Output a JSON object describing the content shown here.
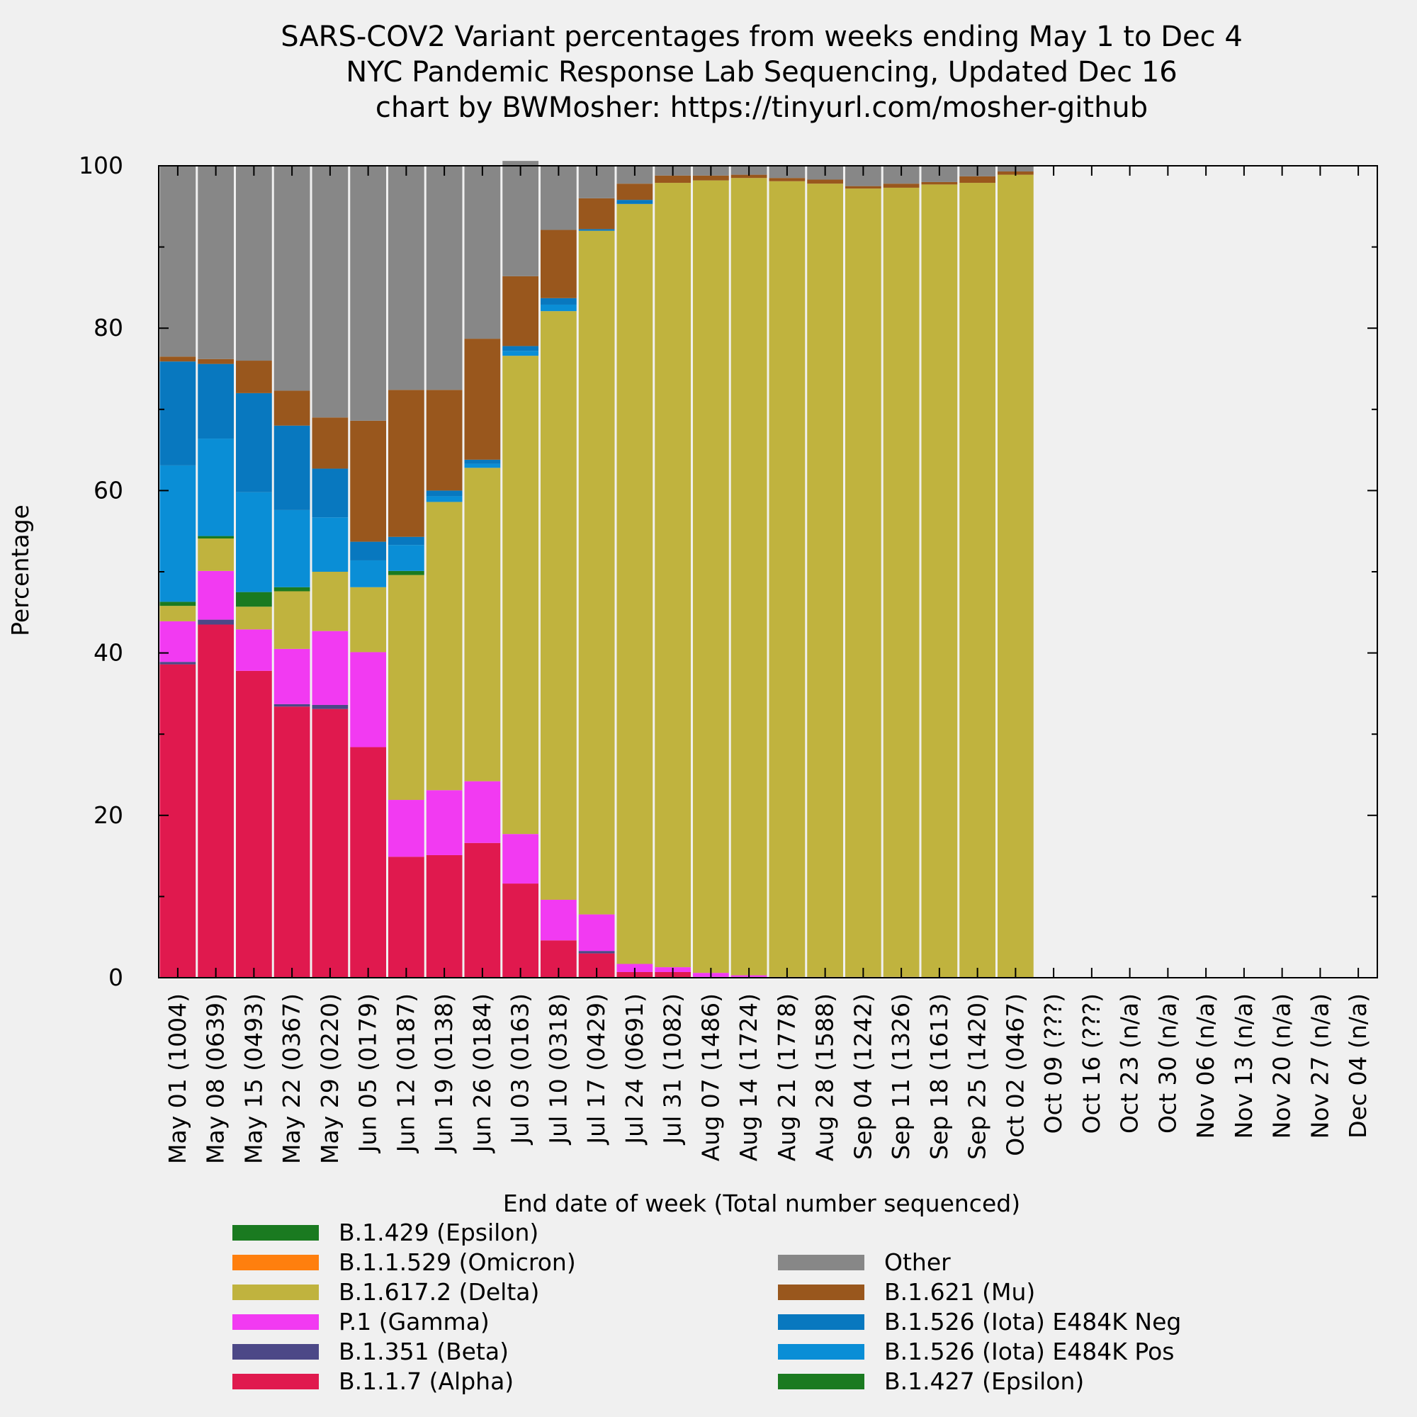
{
  "titles": [
    "SARS-COV2 Variant percentages from weeks ending May 1 to Dec 4",
    "NYC Pandemic Response Lab Sequencing, Updated Dec 16",
    "chart by BWMosher: https://tinyurl.com/mosher-github"
  ],
  "chart_data": {
    "type": "bar",
    "stacked": true,
    "title": "SARS-COV2 Variant percentages from weeks ending May 1 to Dec 4",
    "xlabel": "End date of week (Total number sequenced)",
    "ylabel": "Percentage",
    "ylim": [
      0,
      100
    ],
    "yticks": [
      0,
      20,
      40,
      60,
      80,
      100
    ],
    "grid": false,
    "categories": [
      "May 01 (1004)",
      "May 08 (0639)",
      "May 15 (0493)",
      "May 22 (0367)",
      "May 29 (0220)",
      "Jun 05 (0179)",
      "Jun 12 (0187)",
      "Jun 19 (0138)",
      "Jun 26 (0184)",
      "Jul 03 (0163)",
      "Jul 10 (0318)",
      "Jul 17 (0429)",
      "Jul 24 (0691)",
      "Jul 31 (1082)",
      "Aug 07 (1486)",
      "Aug 14 (1724)",
      "Aug 21 (1778)",
      "Aug 28 (1588)",
      "Sep 04 (1242)",
      "Sep 11 (1326)",
      "Sep 18 (1613)",
      "Sep 25 (1420)",
      "Oct 02 (0467)",
      "Oct 09 (???)",
      "Oct 16 (???)",
      "Oct 23 (n/a)",
      "Oct 30 (n/a)",
      "Nov 06 (n/a)",
      "Nov 13 (n/a)",
      "Nov 20 (n/a)",
      "Nov 27 (n/a)",
      "Dec 04 (n/a)"
    ],
    "series": [
      {
        "name": "B.1.1.7 (Alpha)",
        "color": "#e0194e",
        "values": [
          38.6,
          43.5,
          37.8,
          33.4,
          33.1,
          28.4,
          14.9,
          15.1,
          16.6,
          11.6,
          4.6,
          3.0,
          0.7,
          0.7,
          0.1,
          0.1,
          0,
          0,
          0,
          0,
          0,
          0,
          0,
          0,
          0,
          0,
          0,
          0,
          0,
          0,
          0,
          0
        ]
      },
      {
        "name": "B.1.351 (Beta)",
        "color": "#4c4887",
        "values": [
          0.3,
          0.6,
          0,
          0.3,
          0.5,
          0,
          0,
          0,
          0,
          0,
          0,
          0.3,
          0,
          0,
          0,
          0,
          0,
          0,
          0,
          0,
          0,
          0,
          0,
          0,
          0,
          0,
          0,
          0,
          0,
          0,
          0,
          0
        ]
      },
      {
        "name": "P.1 (Gamma)",
        "color": "#f23af2",
        "values": [
          5.0,
          6.0,
          5.1,
          6.8,
          9.1,
          11.7,
          7.0,
          8.0,
          7.6,
          6.1,
          5.0,
          4.5,
          1.0,
          0.6,
          0.5,
          0.2,
          0.1,
          0.1,
          0.1,
          0.1,
          0,
          0,
          0,
          0,
          0,
          0,
          0,
          0,
          0,
          0,
          0,
          0
        ]
      },
      {
        "name": "B.1.617.2 (Delta)",
        "color": "#c0b33e",
        "values": [
          1.9,
          4.0,
          2.8,
          7.1,
          7.3,
          8.0,
          27.7,
          35.5,
          38.6,
          58.9,
          72.5,
          84.2,
          93.6,
          96.6,
          97.6,
          98.2,
          98.0,
          97.7,
          97.1,
          97.2,
          97.7,
          97.9,
          98.9,
          0,
          0,
          0,
          0,
          0,
          0,
          0,
          0,
          0
        ]
      },
      {
        "name": "B.1.1.529 (Omicron)",
        "color": "#ff7f0e",
        "values": [
          0,
          0,
          0,
          0,
          0,
          0,
          0,
          0,
          0,
          0,
          0,
          0,
          0,
          0,
          0,
          0,
          0,
          0,
          0,
          0,
          0,
          0,
          0,
          0,
          0,
          0,
          0,
          0,
          0,
          0,
          0,
          0
        ]
      },
      {
        "name": "B.1.429 (Epsilon)",
        "color": "#1a7a20",
        "values": [
          0.5,
          0.3,
          1.8,
          0.5,
          0,
          0,
          0.5,
          0,
          0,
          0,
          0,
          0,
          0,
          0,
          0,
          0,
          0,
          0,
          0,
          0,
          0,
          0,
          0,
          0,
          0,
          0,
          0,
          0,
          0,
          0,
          0,
          0
        ]
      },
      {
        "name": "B.1.427 (Epsilon)",
        "color": "#1a7a20",
        "values": [
          0,
          0,
          0,
          0,
          0,
          0,
          0,
          0,
          0,
          0,
          0,
          0,
          0,
          0,
          0,
          0,
          0,
          0,
          0,
          0,
          0,
          0,
          0,
          0,
          0,
          0,
          0,
          0,
          0,
          0,
          0,
          0
        ]
      },
      {
        "name": "B.1.526 (Iota) E484K Pos",
        "color": "#0a8ed6",
        "values": [
          16.8,
          12.0,
          12.3,
          9.5,
          6.7,
          3.3,
          3.2,
          0.7,
          0.5,
          0.6,
          0.8,
          0,
          0,
          0,
          0,
          0,
          0,
          0,
          0,
          0,
          0,
          0,
          0,
          0,
          0,
          0,
          0,
          0,
          0,
          0,
          0,
          0
        ]
      },
      {
        "name": "B.1.526 (Iota) E484K Neg",
        "color": "#0878bf",
        "values": [
          12.8,
          9.2,
          12.2,
          10.4,
          6.0,
          2.3,
          1.0,
          0.7,
          0.5,
          0.6,
          0.8,
          0.2,
          0.5,
          0,
          0,
          0,
          0,
          0,
          0,
          0,
          0,
          0,
          0,
          0,
          0,
          0,
          0,
          0,
          0,
          0,
          0,
          0
        ]
      },
      {
        "name": "B.1.621 (Mu)",
        "color": "#99571d",
        "values": [
          0.6,
          0.6,
          4.0,
          4.3,
          6.3,
          14.9,
          18.1,
          12.4,
          14.9,
          8.6,
          8.4,
          3.8,
          2.0,
          0.9,
          0.6,
          0.4,
          0.4,
          0.5,
          0.3,
          0.5,
          0.3,
          0.8,
          0.4,
          0,
          0,
          0,
          0,
          0,
          0,
          0,
          0,
          0
        ]
      },
      {
        "name": "Other",
        "color": "#878787",
        "values": [
          23.5,
          23.8,
          24.0,
          27.7,
          31.0,
          31.4,
          27.6,
          27.6,
          21.3,
          14.2,
          7.9,
          4.0,
          2.2,
          1.2,
          1.2,
          1.1,
          1.5,
          1.7,
          2.5,
          2.2,
          2.0,
          1.3,
          0.7,
          0,
          0,
          0,
          0,
          0,
          0,
          0,
          0,
          0
        ]
      }
    ]
  },
  "legend": {
    "left": [
      {
        "label": "B.1.429 (Epsilon)",
        "color": "#1a7a20"
      },
      {
        "label": "B.1.1.529 (Omicron)",
        "color": "#ff7f0e"
      },
      {
        "label": "B.1.617.2 (Delta)",
        "color": "#c0b33e"
      },
      {
        "label": "P.1 (Gamma)",
        "color": "#f23af2"
      },
      {
        "label": "B.1.351 (Beta)",
        "color": "#4c4887"
      },
      {
        "label": "B.1.1.7 (Alpha)",
        "color": "#e0194e"
      }
    ],
    "right": [
      {
        "label": "Other",
        "color": "#878787"
      },
      {
        "label": "B.1.621 (Mu)",
        "color": "#99571d"
      },
      {
        "label": "B.1.526 (Iota) E484K Neg",
        "color": "#0878bf"
      },
      {
        "label": "B.1.526 (Iota) E484K Pos",
        "color": "#0a8ed6"
      },
      {
        "label": "B.1.427 (Epsilon)",
        "color": "#1a7a20"
      }
    ]
  }
}
